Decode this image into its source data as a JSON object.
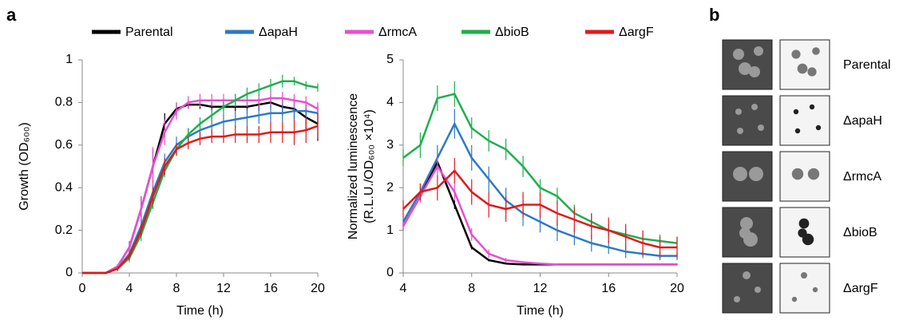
{
  "panel_labels": [
    "a",
    "b"
  ],
  "chart_data": [
    {
      "type": "line",
      "xlabel": "Time (h)",
      "ylabel": "Growth (OD₆₀₀)",
      "x": [
        0,
        1,
        2,
        3,
        4,
        5,
        6,
        7,
        8,
        9,
        10,
        11,
        12,
        13,
        14,
        15,
        16,
        17,
        18,
        19,
        20
      ],
      "xlim": [
        0,
        20
      ],
      "xticks": [
        0,
        4,
        8,
        12,
        16,
        20
      ],
      "ylim": [
        0,
        1
      ],
      "yticks": [
        0,
        0.2,
        0.4,
        0.6,
        0.8,
        1
      ],
      "series": [
        {
          "name": "Parental",
          "color": "#000000",
          "values": [
            0,
            0,
            0,
            0.03,
            0.12,
            0.3,
            0.5,
            0.7,
            0.77,
            0.79,
            0.79,
            0.78,
            0.78,
            0.78,
            0.78,
            0.79,
            0.8,
            0.78,
            0.77,
            0.73,
            0.7
          ],
          "errors": [
            0,
            0,
            0,
            0.01,
            0.03,
            0.06,
            0.08,
            0.05,
            0.03,
            0.02,
            0.02,
            0.02,
            0.02,
            0.02,
            0.03,
            0.03,
            0.03,
            0.04,
            0.05,
            0.06,
            0.08
          ]
        },
        {
          "name": "ΔapaH",
          "color": "#2f78c4",
          "values": [
            0,
            0,
            0,
            0.02,
            0.09,
            0.22,
            0.38,
            0.52,
            0.6,
            0.64,
            0.67,
            0.69,
            0.71,
            0.72,
            0.73,
            0.74,
            0.75,
            0.75,
            0.76,
            0.76,
            0.75
          ],
          "errors": [
            0,
            0,
            0,
            0.01,
            0.02,
            0.03,
            0.04,
            0.04,
            0.04,
            0.04,
            0.04,
            0.04,
            0.04,
            0.04,
            0.04,
            0.04,
            0.04,
            0.04,
            0.05,
            0.05,
            0.05
          ]
        },
        {
          "name": "ΔrmcA",
          "color": "#e84fd0",
          "values": [
            0,
            0,
            0,
            0.03,
            0.12,
            0.3,
            0.5,
            0.66,
            0.76,
            0.8,
            0.81,
            0.81,
            0.81,
            0.81,
            0.81,
            0.81,
            0.82,
            0.82,
            0.81,
            0.8,
            0.77
          ],
          "errors": [
            0,
            0,
            0,
            0.01,
            0.03,
            0.06,
            0.09,
            0.06,
            0.04,
            0.03,
            0.03,
            0.03,
            0.03,
            0.03,
            0.03,
            0.03,
            0.03,
            0.03,
            0.03,
            0.03,
            0.03
          ]
        },
        {
          "name": "ΔbioB",
          "color": "#1fae4f",
          "values": [
            0,
            0,
            0,
            0.02,
            0.07,
            0.18,
            0.33,
            0.48,
            0.58,
            0.65,
            0.7,
            0.74,
            0.78,
            0.81,
            0.84,
            0.86,
            0.88,
            0.9,
            0.9,
            0.88,
            0.87
          ],
          "errors": [
            0,
            0,
            0,
            0.01,
            0.02,
            0.03,
            0.03,
            0.03,
            0.03,
            0.03,
            0.03,
            0.03,
            0.03,
            0.03,
            0.03,
            0.03,
            0.03,
            0.03,
            0.02,
            0.02,
            0.02
          ]
        },
        {
          "name": "ΔargF",
          "color": "#e0191b",
          "values": [
            0,
            0,
            0,
            0.02,
            0.08,
            0.2,
            0.36,
            0.5,
            0.58,
            0.61,
            0.63,
            0.64,
            0.64,
            0.65,
            0.65,
            0.65,
            0.66,
            0.66,
            0.66,
            0.67,
            0.69
          ],
          "errors": [
            0,
            0,
            0,
            0.01,
            0.02,
            0.03,
            0.04,
            0.04,
            0.03,
            0.03,
            0.03,
            0.03,
            0.03,
            0.04,
            0.04,
            0.04,
            0.05,
            0.05,
            0.06,
            0.06,
            0.06
          ]
        }
      ]
    },
    {
      "type": "line",
      "xlabel": "Time (h)",
      "ylabel": [
        "Normalized luminescence",
        "(R.L.U./OD₆₀₀ ×10⁴)"
      ],
      "x": [
        4,
        5,
        6,
        7,
        8,
        9,
        10,
        11,
        12,
        13,
        14,
        15,
        16,
        17,
        18,
        19,
        20
      ],
      "xlim": [
        4,
        20
      ],
      "xticks": [
        4,
        8,
        12,
        16,
        20
      ],
      "ylim": [
        0,
        5
      ],
      "yticks": [
        0,
        1,
        2,
        3,
        4,
        5
      ],
      "series": [
        {
          "color": "#000000",
          "values": [
            1.1,
            1.8,
            2.6,
            1.6,
            0.6,
            0.3,
            0.22,
            0.2,
            0.2,
            0.2,
            0.2,
            0.2,
            0.2,
            0.2,
            0.2,
            0.2,
            0.2
          ],
          "errors": [
            0.1,
            0.1,
            0.15,
            0.1,
            0.05,
            0.03,
            0.02,
            0.02,
            0.02,
            0.02,
            0.02,
            0.02,
            0.02,
            0.02,
            0.02,
            0.02,
            0.02
          ]
        },
        {
          "color": "#2f78c4",
          "values": [
            1.2,
            1.9,
            2.7,
            3.5,
            2.7,
            2.2,
            1.7,
            1.4,
            1.2,
            1.0,
            0.85,
            0.7,
            0.6,
            0.5,
            0.45,
            0.4,
            0.4
          ],
          "errors": [
            0.1,
            0.2,
            0.3,
            0.35,
            0.3,
            0.3,
            0.3,
            0.3,
            0.25,
            0.25,
            0.2,
            0.2,
            0.15,
            0.15,
            0.1,
            0.1,
            0.1
          ]
        },
        {
          "color": "#e84fd0",
          "values": [
            1.1,
            1.8,
            2.5,
            1.9,
            0.9,
            0.45,
            0.3,
            0.25,
            0.22,
            0.2,
            0.2,
            0.2,
            0.2,
            0.2,
            0.2,
            0.2,
            0.2
          ],
          "errors": [
            0.1,
            0.15,
            0.2,
            0.2,
            0.15,
            0.1,
            0.05,
            0.03,
            0.02,
            0.02,
            0.02,
            0.02,
            0.02,
            0.02,
            0.02,
            0.02,
            0.02
          ]
        },
        {
          "color": "#1fae4f",
          "values": [
            2.7,
            3.0,
            4.1,
            4.2,
            3.4,
            3.1,
            2.9,
            2.5,
            2.0,
            1.8,
            1.4,
            1.2,
            1.0,
            0.9,
            0.8,
            0.75,
            0.7
          ],
          "errors": [
            0.2,
            0.3,
            0.3,
            0.3,
            0.25,
            0.25,
            0.25,
            0.25,
            0.2,
            0.2,
            0.2,
            0.2,
            0.15,
            0.15,
            0.15,
            0.15,
            0.15
          ]
        },
        {
          "color": "#e0191b",
          "values": [
            1.5,
            1.9,
            2.0,
            2.4,
            1.9,
            1.6,
            1.5,
            1.6,
            1.6,
            1.4,
            1.25,
            1.1,
            1.0,
            0.85,
            0.7,
            0.6,
            0.6
          ],
          "errors": [
            0.2,
            0.2,
            0.3,
            0.3,
            0.3,
            0.3,
            0.3,
            0.3,
            0.3,
            0.3,
            0.3,
            0.3,
            0.3,
            0.3,
            0.3,
            0.25,
            0.25
          ]
        }
      ]
    }
  ],
  "image_panel": {
    "rows": [
      "Parental",
      "ΔapaH",
      "ΔrmcA",
      "ΔbioB",
      "ΔargF"
    ]
  }
}
